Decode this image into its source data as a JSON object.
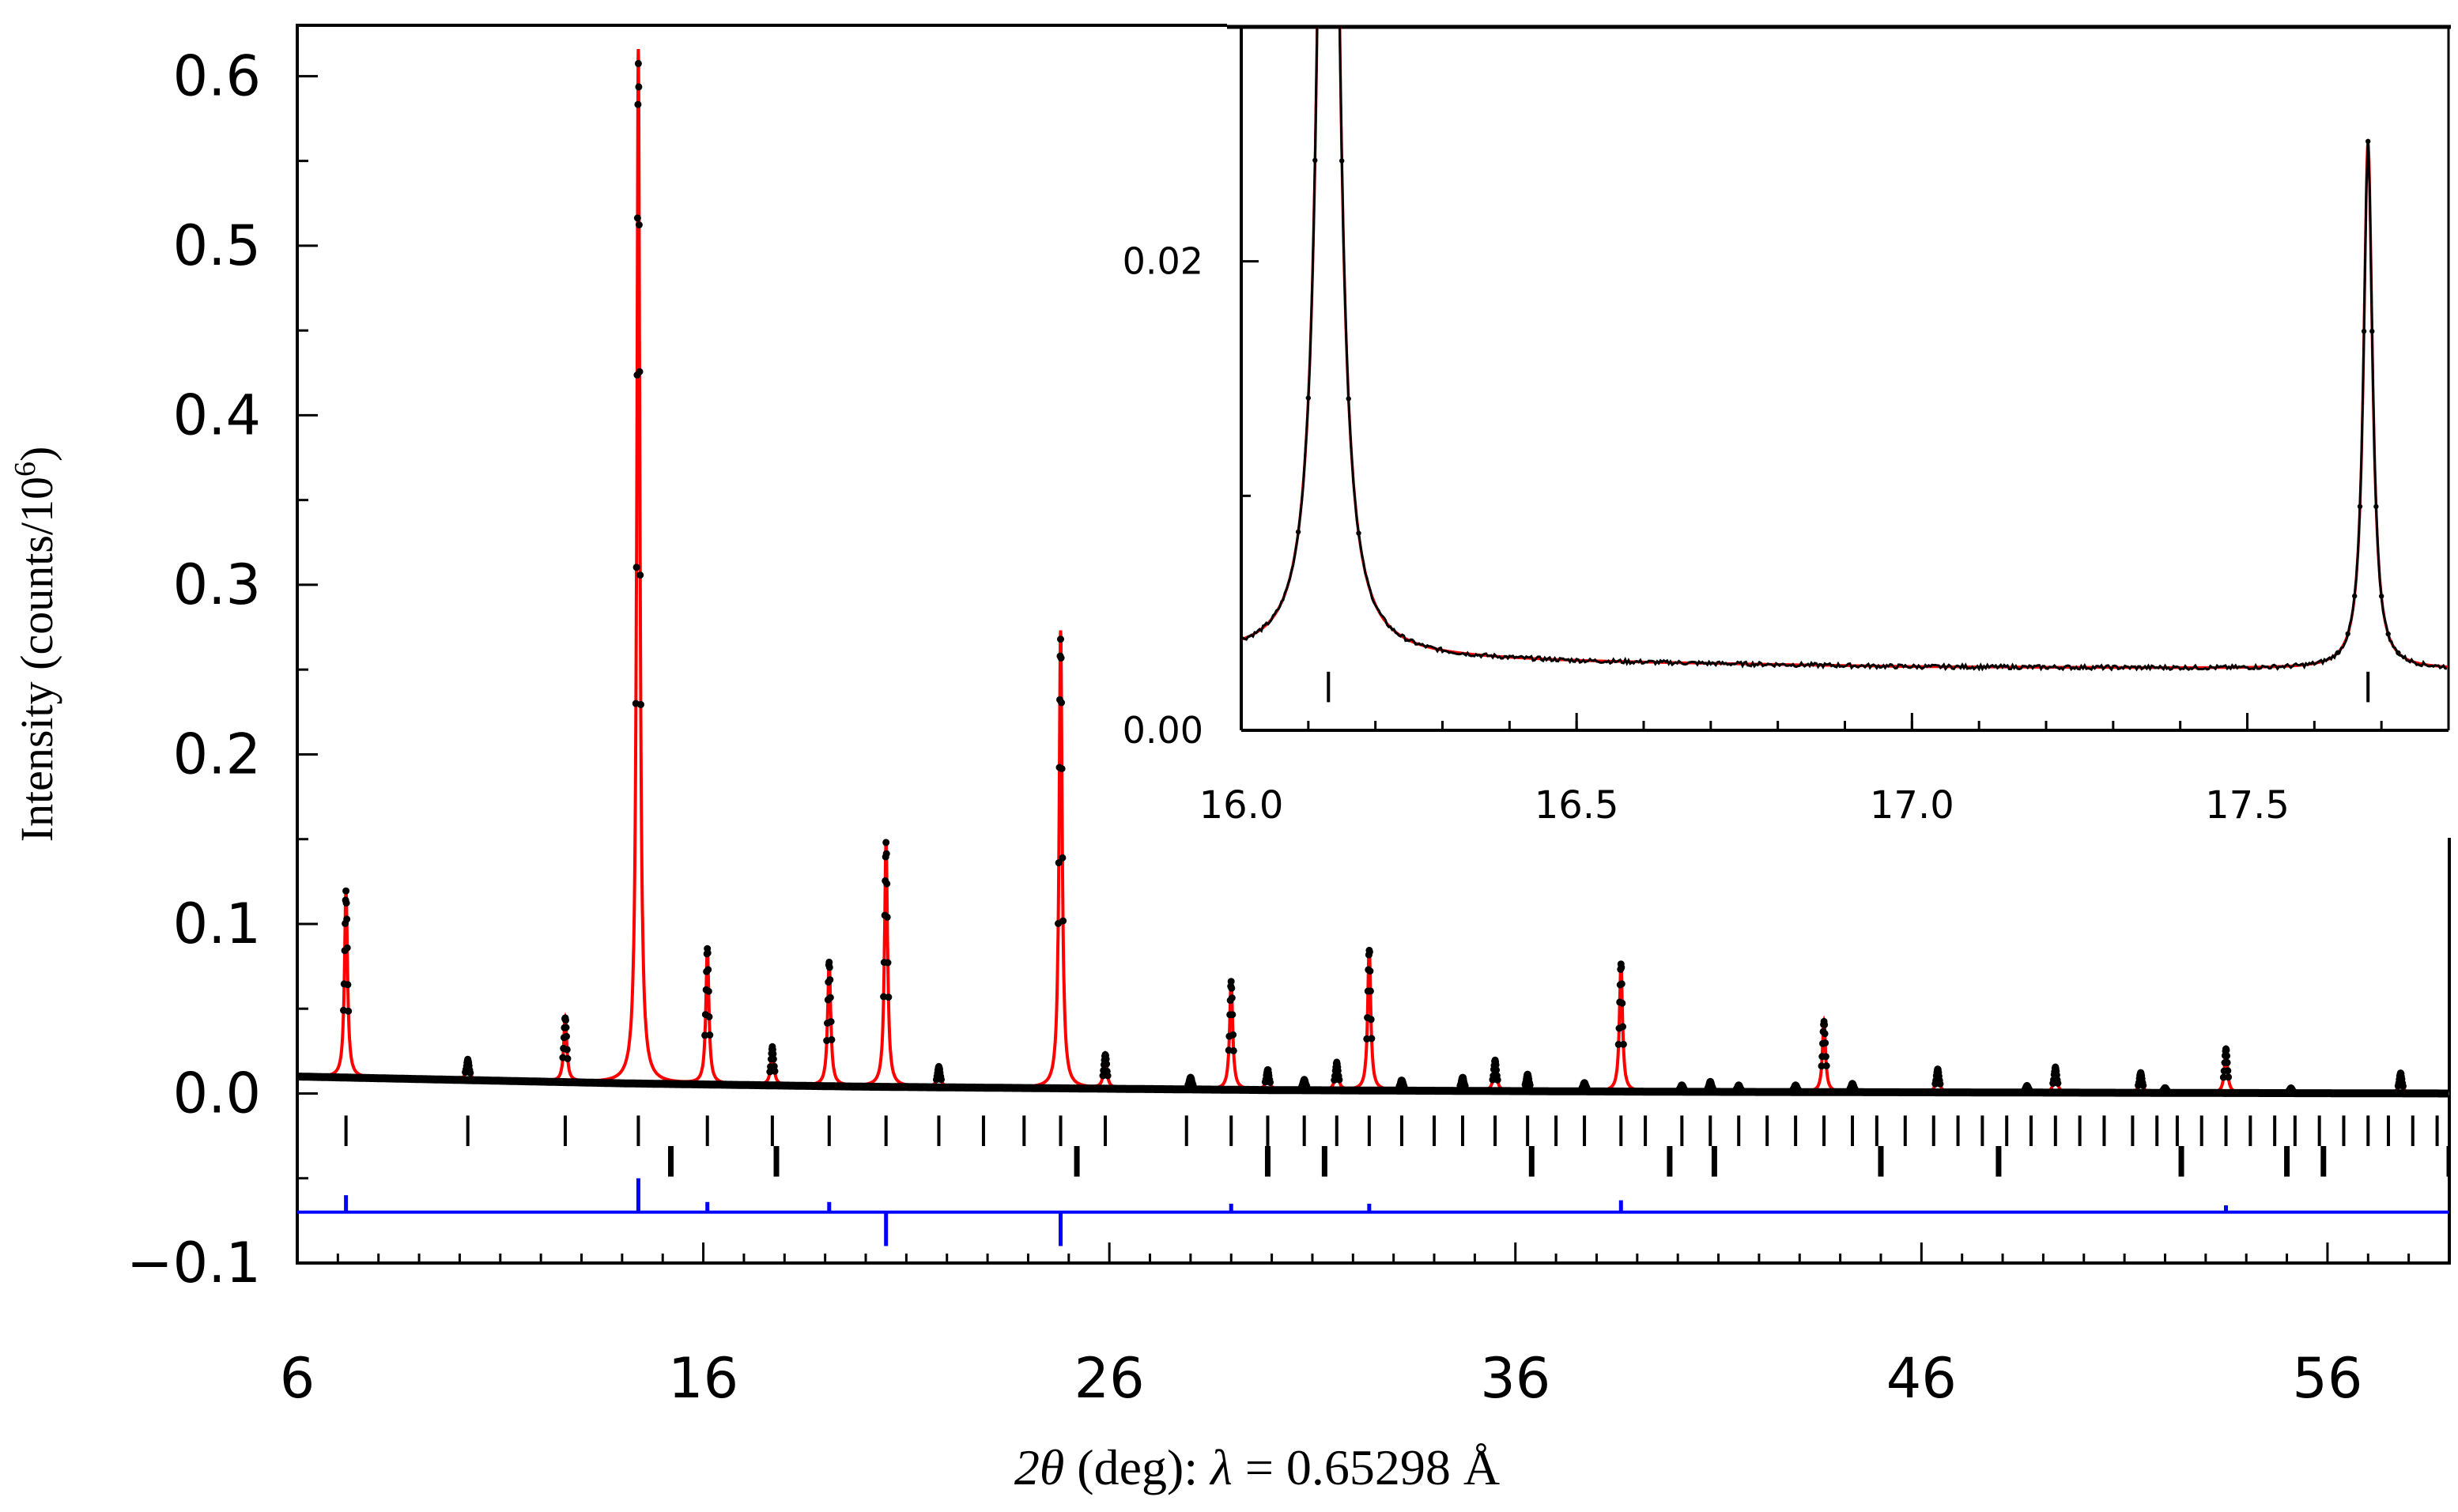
{
  "chart_data": [
    {
      "type": "line",
      "panel": "main",
      "title": "",
      "xlabel": "2θ (deg): λ = 0.65298 Å",
      "xlabel_parts": {
        "theta_label": "2θ",
        "unit_text": " (deg): ",
        "lambda_symbol": "λ",
        "lambda_value": " = 0.65298 Å"
      },
      "ylabel": "Intensity (counts/10",
      "ylabel_sup": "6",
      "ylabel_close": ")",
      "xlim": [
        6,
        59
      ],
      "ylim": [
        -0.1,
        0.63
      ],
      "xticks": [
        6,
        16,
        26,
        36,
        46,
        56
      ],
      "xtick_labels": [
        "6",
        "16",
        "26",
        "36",
        "46",
        "56"
      ],
      "yticks": [
        -0.1,
        0.0,
        0.1,
        0.2,
        0.3,
        0.4,
        0.5,
        0.6
      ],
      "ytick_labels": [
        "−0.1",
        "0.0",
        "0.1",
        "0.2",
        "0.3",
        "0.4",
        "0.5",
        "0.6"
      ],
      "background": [
        [
          6,
          0.01
        ],
        [
          10,
          0.008
        ],
        [
          14,
          0.006
        ],
        [
          20,
          0.004
        ],
        [
          30,
          0.002
        ],
        [
          40,
          0.001
        ],
        [
          59,
          0.0
        ]
      ],
      "series": [
        {
          "name": "observed",
          "style": "markers",
          "color": "#000000"
        },
        {
          "name": "calculated",
          "style": "line",
          "color": "#ff0000"
        },
        {
          "name": "difference",
          "style": "line",
          "color": "#0000ff",
          "offset": -0.07
        }
      ],
      "peaks": [
        {
          "x": 7.2,
          "y": 0.11
        },
        {
          "x": 10.2,
          "y": 0.012
        },
        {
          "x": 12.6,
          "y": 0.038
        },
        {
          "x": 14.4,
          "y": 0.61
        },
        {
          "x": 16.1,
          "y": 0.08
        },
        {
          "x": 17.7,
          "y": 0.022
        },
        {
          "x": 19.1,
          "y": 0.074
        },
        {
          "x": 20.5,
          "y": 0.145
        },
        {
          "x": 21.8,
          "y": 0.012
        },
        {
          "x": 24.8,
          "y": 0.27
        },
        {
          "x": 25.9,
          "y": 0.02
        },
        {
          "x": 28.0,
          "y": 0.007
        },
        {
          "x": 29.0,
          "y": 0.064
        },
        {
          "x": 29.9,
          "y": 0.012
        },
        {
          "x": 30.8,
          "y": 0.006
        },
        {
          "x": 31.6,
          "y": 0.016
        },
        {
          "x": 32.4,
          "y": 0.084
        },
        {
          "x": 33.2,
          "y": 0.006
        },
        {
          "x": 34.7,
          "y": 0.008
        },
        {
          "x": 35.5,
          "y": 0.018
        },
        {
          "x": 36.3,
          "y": 0.01
        },
        {
          "x": 37.7,
          "y": 0.005
        },
        {
          "x": 38.6,
          "y": 0.076
        },
        {
          "x": 40.1,
          "y": 0.004
        },
        {
          "x": 40.8,
          "y": 0.006
        },
        {
          "x": 41.5,
          "y": 0.004
        },
        {
          "x": 42.9,
          "y": 0.004
        },
        {
          "x": 43.6,
          "y": 0.042
        },
        {
          "x": 44.3,
          "y": 0.005
        },
        {
          "x": 46.4,
          "y": 0.014
        },
        {
          "x": 48.6,
          "y": 0.004
        },
        {
          "x": 49.3,
          "y": 0.015
        },
        {
          "x": 51.4,
          "y": 0.012
        },
        {
          "x": 52.0,
          "y": 0.003
        },
        {
          "x": 53.5,
          "y": 0.026
        },
        {
          "x": 55.1,
          "y": 0.003
        },
        {
          "x": 57.8,
          "y": 0.012
        }
      ],
      "difference_spikes": [
        {
          "x": 7.2,
          "v": 0.01
        },
        {
          "x": 14.4,
          "v": 0.02
        },
        {
          "x": 16.1,
          "v": 0.006
        },
        {
          "x": 19.1,
          "v": 0.006
        },
        {
          "x": 20.5,
          "v": -0.02
        },
        {
          "x": 24.8,
          "v": -0.02
        },
        {
          "x": 29.0,
          "v": 0.005
        },
        {
          "x": 32.4,
          "v": 0.005
        },
        {
          "x": 38.6,
          "v": 0.007
        },
        {
          "x": 53.5,
          "v": 0.004
        }
      ],
      "reflections_phase1": [
        7.2,
        10.2,
        12.6,
        14.4,
        16.1,
        17.7,
        19.1,
        20.5,
        21.8,
        22.9,
        23.9,
        24.8,
        25.9,
        27.9,
        29.0,
        29.9,
        30.8,
        31.6,
        32.4,
        33.2,
        34.0,
        34.7,
        35.5,
        36.3,
        37.0,
        37.7,
        38.6,
        39.2,
        40.1,
        40.8,
        41.5,
        42.2,
        42.9,
        43.6,
        44.3,
        44.9,
        45.6,
        46.3,
        46.9,
        47.5,
        48.1,
        48.7,
        49.3,
        49.9,
        50.5,
        51.2,
        51.8,
        52.3,
        52.9,
        53.5,
        54.1,
        54.7,
        55.2,
        55.8,
        56.4,
        57.0,
        57.5,
        58.1,
        58.7
      ],
      "reflections_phase2": [
        15.2,
        17.8,
        25.2,
        29.9,
        31.3,
        36.4,
        39.8,
        40.9,
        45.0,
        47.9,
        52.4,
        55.0,
        55.9,
        59.0
      ]
    },
    {
      "type": "line",
      "panel": "inset",
      "xlim": [
        16.0,
        17.8
      ],
      "ylim": [
        0.0,
        0.03
      ],
      "xticks": [
        16.0,
        16.5,
        17.0,
        17.5
      ],
      "xtick_labels": [
        "16.0",
        "16.5",
        "17.0",
        "17.5"
      ],
      "yticks": [
        0.0,
        0.02
      ],
      "ytick_labels": [
        "0.00",
        "0.02"
      ],
      "background": [
        [
          16.0,
          0.0032
        ],
        [
          16.5,
          0.0029
        ],
        [
          17.0,
          0.0027
        ],
        [
          17.8,
          0.0026
        ]
      ],
      "peaks": [
        {
          "x": 16.13,
          "y": 0.08,
          "width": 0.012
        },
        {
          "x": 17.68,
          "y": 0.0225,
          "width": 0.008
        }
      ],
      "reflections": [
        16.13,
        17.68
      ]
    }
  ]
}
